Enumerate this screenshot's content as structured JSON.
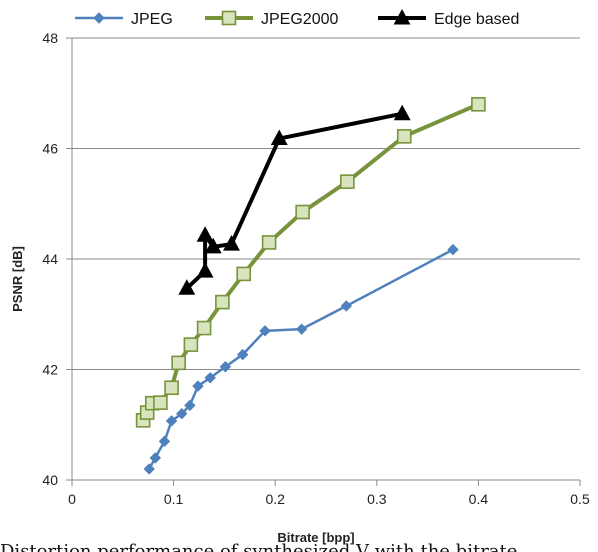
{
  "chart_data": {
    "type": "line",
    "title": "",
    "xlabel": "Bitrate [bpp]",
    "ylabel": "PSNR [dB]",
    "xlim": [
      0,
      0.5
    ],
    "ylim": [
      40,
      48
    ],
    "xticks": [
      0,
      0.1,
      0.2,
      0.3,
      0.4,
      0.5
    ],
    "yticks": [
      40,
      42,
      44,
      46,
      48
    ],
    "grid": "horizontal",
    "legend_position": "top",
    "series": [
      {
        "name": "JPEG",
        "color": "#4f81bd",
        "marker": "diamond",
        "points": [
          [
            0.076,
            40.2
          ],
          [
            0.082,
            40.4
          ],
          [
            0.091,
            40.7
          ],
          [
            0.098,
            41.07
          ],
          [
            0.108,
            41.2
          ],
          [
            0.116,
            41.35
          ],
          [
            0.124,
            41.7
          ],
          [
            0.136,
            41.85
          ],
          [
            0.151,
            42.05
          ],
          [
            0.168,
            42.27
          ],
          [
            0.19,
            42.7
          ],
          [
            0.226,
            42.73
          ],
          [
            0.27,
            43.15
          ],
          [
            0.375,
            44.17
          ]
        ]
      },
      {
        "name": "JPEG2000",
        "color": "#77933c",
        "marker": "square",
        "points": [
          [
            0.07,
            41.08
          ],
          [
            0.074,
            41.22
          ],
          [
            0.079,
            41.39
          ],
          [
            0.087,
            41.4
          ],
          [
            0.098,
            41.67
          ],
          [
            0.105,
            42.12
          ],
          [
            0.117,
            42.45
          ],
          [
            0.13,
            42.75
          ],
          [
            0.148,
            43.22
          ],
          [
            0.169,
            43.73
          ],
          [
            0.194,
            44.3
          ],
          [
            0.227,
            44.85
          ],
          [
            0.271,
            45.4
          ],
          [
            0.327,
            46.22
          ],
          [
            0.4,
            46.8
          ]
        ]
      },
      {
        "name": "Edge based",
        "color": "#000000",
        "marker": "triangle",
        "points": [
          [
            0.113,
            43.47
          ],
          [
            0.131,
            43.78
          ],
          [
            0.131,
            44.43
          ],
          [
            0.139,
            44.22
          ],
          [
            0.157,
            44.27
          ],
          [
            0.204,
            46.18
          ],
          [
            0.325,
            46.63
          ]
        ]
      }
    ]
  },
  "caption": "Distortion performance of synthesized V with the bitrate"
}
